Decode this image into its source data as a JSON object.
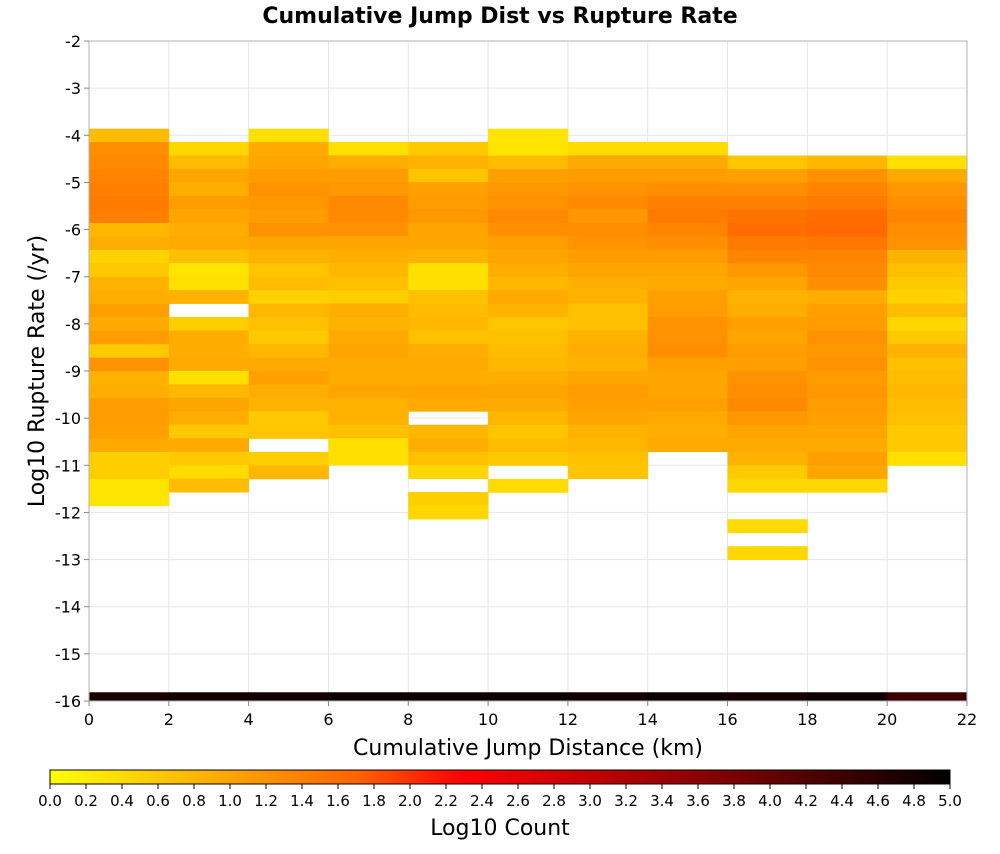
{
  "chart_data": {
    "type": "heatmap",
    "title": "Cumulative Jump Dist vs Rupture Rate",
    "xlabel": "Cumulative Jump Distance (km)",
    "ylabel": "Log10 Rupture Rate (/yr)",
    "xlim": [
      0,
      22
    ],
    "ylim": [
      -16,
      -2
    ],
    "grid": true,
    "x_ticks": [
      "0",
      "2",
      "4",
      "6",
      "8",
      "10",
      "12",
      "14",
      "16",
      "18",
      "20",
      "22"
    ],
    "y_ticks": [
      "-2",
      "-3",
      "-4",
      "-5",
      "-6",
      "-7",
      "-8",
      "-9",
      "-10",
      "-11",
      "-12",
      "-13",
      "-14",
      "-15",
      "-16"
    ],
    "x_bins": [
      0,
      2,
      4,
      6,
      8,
      10,
      12,
      14,
      16,
      18,
      20,
      22
    ],
    "y_bin_size": 0.2857,
    "y_bins_start": -16.0,
    "colorscale": {
      "label": "Log10 Count",
      "min": 0.0,
      "max": 5.0,
      "tick_labels": [
        "0.0",
        "0.2",
        "0.4",
        "0.6",
        "0.8",
        "1.0",
        "1.2",
        "1.4",
        "1.6",
        "1.8",
        "2.0",
        "2.2",
        "2.4",
        "2.6",
        "2.8",
        "3.0",
        "3.2",
        "3.4",
        "3.6",
        "3.8",
        "4.0",
        "4.2",
        "4.4",
        "4.6",
        "4.8",
        "5.0"
      ],
      "colors": [
        "#ffff00",
        "#ffa500",
        "#ff6400",
        "#ff0000",
        "#cc0000",
        "#7a0000",
        "#000000"
      ]
    },
    "columns": [
      {
        "x0": 0,
        "x1": 2,
        "y_top": -3.86,
        "values": [
          0.75,
          1.25,
          1.3,
          1.35,
          1.4,
          1.45,
          1.4,
          0.8,
          0.9,
          0.5,
          0.6,
          0.85,
          0.9,
          1.05,
          0.95,
          1.1,
          0.6,
          1.2,
          0.85,
          0.9,
          1.1,
          1.1,
          1.05,
          0.95,
          0.55,
          0.55,
          0.3,
          0.3
        ]
      },
      {
        "x0": 2,
        "x1": 4,
        "y_top": -4.14,
        "values": [
          0.45,
          0.75,
          1.0,
          0.9,
          1.1,
          1.0,
          0.9,
          0.95,
          0.7,
          0.3,
          0.35,
          0.85,
          null,
          0.55,
          0.9,
          0.9,
          0.95,
          0.35,
          0.8,
          1.0,
          0.9,
          0.6,
          0.95,
          0.6,
          0.4,
          0.75
        ]
      },
      {
        "x0": 4,
        "x1": 6,
        "y_top": -3.86,
        "values": [
          0.35,
          0.95,
          1.0,
          1.1,
          1.2,
          1.15,
          1.1,
          1.2,
          1.0,
          0.85,
          0.65,
          0.75,
          0.5,
          0.8,
          0.7,
          0.6,
          0.8,
          0.95,
          1.05,
          0.9,
          0.85,
          0.6,
          0.65,
          null,
          0.55,
          0.8
        ]
      },
      {
        "x0": 6,
        "x1": 8,
        "y_top": -4.14,
        "values": [
          0.35,
          0.9,
          1.1,
          1.15,
          1.3,
          1.3,
          1.2,
          1.0,
          0.9,
          0.8,
          0.7,
          0.55,
          0.9,
          0.85,
          0.95,
          1.0,
          0.95,
          0.9,
          1.0,
          0.85,
          0.85,
          0.7,
          0.35,
          0.35
        ]
      },
      {
        "x0": 8,
        "x1": 10,
        "y_top": -4.14,
        "values": [
          0.6,
          0.85,
          0.65,
          1.05,
          1.1,
          1.15,
          1.0,
          1.0,
          0.85,
          0.35,
          0.35,
          0.7,
          0.75,
          0.8,
          0.7,
          0.9,
          0.95,
          0.9,
          1.0,
          0.95,
          null,
          0.8,
          0.9,
          0.7,
          0.45,
          null,
          0.55,
          0.45
        ]
      },
      {
        "x0": 10,
        "x1": 12,
        "y_top": -3.86,
        "values": [
          0.3,
          0.3,
          0.75,
          1.05,
          1.15,
          1.2,
          1.3,
          1.25,
          1.05,
          1.0,
          0.9,
          0.8,
          0.95,
          0.85,
          0.65,
          0.7,
          0.75,
          0.8,
          0.9,
          1.0,
          0.95,
          0.8,
          0.65,
          0.75,
          0.6,
          null,
          0.4
        ]
      },
      {
        "x0": 12,
        "x1": 14,
        "y_top": -4.14,
        "values": [
          0.4,
          0.95,
          1.1,
          1.2,
          1.3,
          1.15,
          1.25,
          1.2,
          1.1,
          1.0,
          0.9,
          0.85,
          0.7,
          0.7,
          0.85,
          0.9,
          0.85,
          1.0,
          1.1,
          1.05,
          1.0,
          0.85,
          0.8,
          0.7,
          0.65
        ]
      },
      {
        "x0": 14,
        "x1": 16,
        "y_top": -4.14,
        "values": [
          0.4,
          0.95,
          1.1,
          1.25,
          1.4,
          1.45,
          1.35,
          1.25,
          1.1,
          1.0,
          0.95,
          1.05,
          1.1,
          1.2,
          1.2,
          1.25,
          1.05,
          1.0,
          1.0,
          1.05,
          0.95,
          0.9,
          0.95
        ]
      },
      {
        "x0": 16,
        "x1": 18,
        "y_top": -4.43,
        "values": [
          0.65,
          1.05,
          1.25,
          1.4,
          1.55,
          1.6,
          1.45,
          1.35,
          1.15,
          1.0,
          0.85,
          0.9,
          1.05,
          1.0,
          1.1,
          1.05,
          1.2,
          1.25,
          1.3,
          1.15,
          1.0,
          0.95,
          0.85,
          0.6,
          0.45,
          null,
          null,
          0.4,
          null,
          0.45
        ]
      },
      {
        "x0": 18,
        "x1": 20,
        "y_top": -4.43,
        "values": [
          0.8,
          1.2,
          1.35,
          1.45,
          1.6,
          1.65,
          1.5,
          1.35,
          1.3,
          1.25,
          0.9,
          1.05,
          1.1,
          1.2,
          1.15,
          1.2,
          1.1,
          1.15,
          1.1,
          1.05,
          1.0,
          0.95,
          1.05,
          1.0,
          0.45
        ]
      },
      {
        "x0": 20,
        "x1": 22,
        "y_top": -4.43,
        "values": [
          0.35,
          0.95,
          1.15,
          1.25,
          1.35,
          1.25,
          1.2,
          0.85,
          0.7,
          0.6,
          0.5,
          0.75,
          0.45,
          0.6,
          0.85,
          0.7,
          0.75,
          0.8,
          0.75,
          0.7,
          0.6,
          0.6,
          0.35
        ]
      }
    ],
    "bottom_row": {
      "y0": -16.0,
      "y1": -15.857,
      "values": [
        4.75,
        4.8,
        4.82,
        4.85,
        4.85,
        4.85,
        4.82,
        4.85,
        4.8,
        4.85,
        4.4
      ]
    }
  }
}
